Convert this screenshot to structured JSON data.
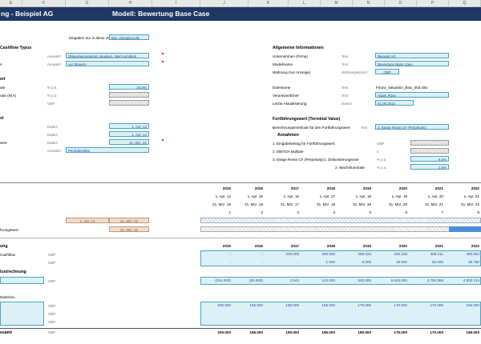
{
  "columns": [
    "E",
    "F",
    "G",
    "H",
    "I",
    "J",
    "K",
    "L",
    "M",
    "N",
    "O",
    "P",
    "Q"
  ],
  "title": {
    "left": "ng -  Beispiel AG",
    "right": "Modell: Bewertung Base Case"
  },
  "input_note": {
    "text": "Eingaben nur in diese Zellen",
    "sample": "Bsp. Eingabezelle"
  },
  "left": {
    "cashflow_title": "Cashflow Typus",
    "auswahl1": {
      "unit": "Auswahl",
      "value": "Diskontierungssatz angeben, Wert ermitteln"
    },
    "auswahl2": {
      "label": "n",
      "unit": "Auswahl",
      "value": "vor Steuern"
    },
    "wert_title": "ert",
    "rate1": {
      "label": "ate",
      "unit": "% p.a.",
      "value": "20,0%"
    },
    "rate2": {
      "label": "rate (N/A)",
      "unit": "% p.a."
    },
    "gbp_unit": "GBP",
    "st_title": "st",
    "datum1": {
      "unit": "Datum",
      "value": "1. Apr. 14"
    },
    "datum2": {
      "unit": "Datum",
      "value": "1. Apr. 14"
    },
    "datum3": {
      "label": "wert",
      "unit": "Datum",
      "value": "31. Mrz. 22"
    },
    "auswahl3": {
      "unit": "Auswahl",
      "value": "Periodenmitte"
    }
  },
  "right": {
    "allg_title": "Allgemeine Informationen",
    "firma": {
      "label": "Unternehmen (Firma)",
      "unit": "Text",
      "value": "Beispiel AG"
    },
    "modell": {
      "label": "Modellname",
      "unit": "Text",
      "value": "Bewertung Base Case"
    },
    "waehrung": {
      "label": "Währung (nur Anzeige)",
      "unit": "Währungskürzel",
      "value": "GBP"
    },
    "datei": {
      "label": "Dateiname",
      "unit": "Text",
      "value": "Fmovi_Valuation_Bsix_003.xlsx"
    },
    "verantw": {
      "label": "Verantwortlicher",
      "unit": "Text",
      "value": "Adam Rose"
    },
    "aktual": {
      "label": "Letzte Aktualisierung",
      "unit": "Datum",
      "value": "01.08.2014"
    },
    "terminal_title": "Fortführungswert (Terminal Value)",
    "methode": {
      "label": "Berechnungsmethode für den Fortführungswert",
      "unit": "Text",
      "value": "3. Ewige Rente CF (Perpetuity)"
    },
    "annahmen": "Annahmen",
    "a1": {
      "label": "1. Eingabebetrag für Fortführungswert",
      "unit": "GBP"
    },
    "a2": {
      "label": "2. EBITDA Multiple",
      "unit": "x"
    },
    "a3": {
      "label": "3. Ewige Rente CF (Perpetuity)",
      "sub1": "1. Diskontierungsrate",
      "unit1": "% p.a.",
      "value1": "8,0%",
      "sub2": "2. Wachstumsrate",
      "unit2": "% p.a.",
      "value2": "2,5%"
    }
  },
  "timeline": {
    "years": [
      "2015",
      "2016",
      "2017",
      "2018",
      "2019",
      "2020",
      "2021",
      "2022"
    ],
    "starts": [
      "1. Apr. 14",
      "1. Apr. 15",
      "1. Apr. 16",
      "1. Apr. 17",
      "1. Apr. 18",
      "1. Apr. 19",
      "1. Apr. 20",
      "1. Apr. 21"
    ],
    "ends": [
      "31. Mrz. 15",
      "31. Mrz. 16",
      "31. Mrz. 17",
      "31. Mrz. 18",
      "31. Mrz. 19",
      "31. Mrz. 20",
      "31. Mrz. 21",
      "31. Mrz. 22"
    ],
    "periods": [
      "1",
      "2",
      "3",
      "4",
      "5",
      "6",
      "7",
      "8"
    ],
    "tv_label": "hrungswert",
    "tan1": "1. Apr. 14",
    "tan2": "31. Mrz. 22",
    "tan3": "31. Mrz. 22"
  },
  "sections": {
    "ung": "ung",
    "cashflow": {
      "label": "Cashflow",
      "unit": "GBP",
      "row1": [
        "-",
        "-",
        "225.000",
        "300.000",
        "288.633",
        "330.225",
        "455.211",
        "485.663"
      ],
      "row2": [
        "-",
        "-",
        "-",
        "1.500",
        "6.000",
        "18.500",
        "60.000",
        "39.750"
      ]
    },
    "years2": [
      "2015",
      "2016",
      "2017",
      "2018",
      "2019",
      "2020",
      "2021",
      "2022"
    ],
    "rechnung": {
      "label": "lustrechnung",
      "unit": "GBP",
      "row": [
        "(204.000)",
        "(80.000)",
        "2.544",
        "144.000",
        "540.000",
        "6.540.000",
        "3.750.368",
        "4.532.114"
      ]
    },
    "darlehen": {
      "label": "Darlehen",
      "units": [
        "GBP",
        "GBP",
        "GBP",
        "GBP"
      ],
      "row": [
        "200.000",
        "185.000",
        "190.000",
        "185.000",
        "175.000",
        "170.000",
        "170.000",
        "165.000"
      ]
    },
    "gesamt": {
      "label": "esamt",
      "unit": "GBP",
      "row": [
        "200.000",
        "195.000",
        "190.000",
        "185.000",
        "180.000",
        "175.000",
        "170.000",
        "165.000"
      ]
    }
  }
}
